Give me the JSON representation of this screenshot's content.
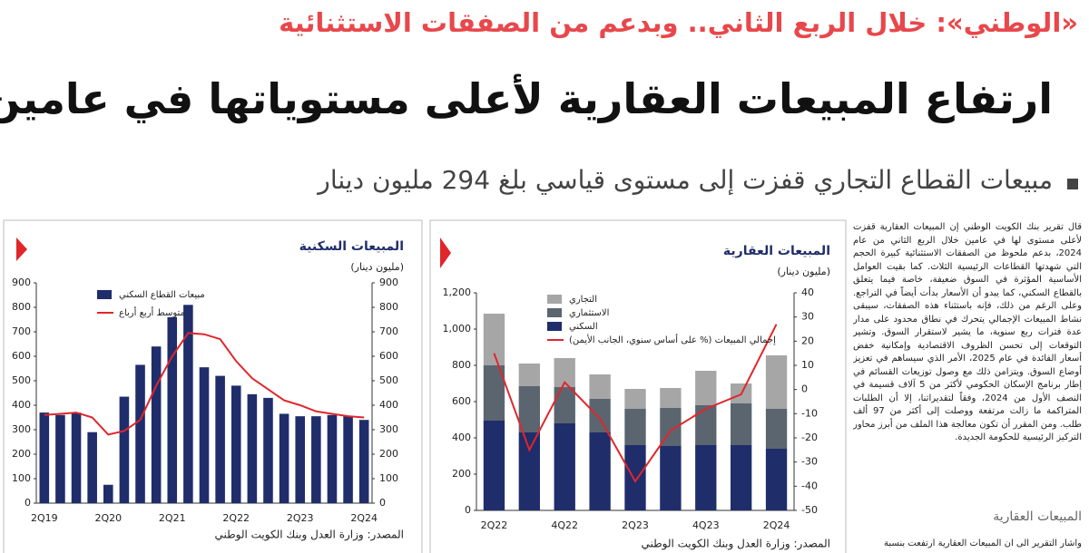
{
  "header": {
    "kicker": "«الوطني»: خلال الربع الثاني.. وبدعم من الصفقات الاستثنائية",
    "headline": "ارتفاع المبيعات العقارية لأعلى مستوياتها في عامين",
    "subheadline": "مبيعات القطاع التجاري قفزت إلى مستوى قياسي بلغ 294 مليون دينار"
  },
  "chart_data": [
    {
      "type": "combo",
      "title": "المبيعات السكنية",
      "unit": "(مليون دينار)",
      "source": "المصدر: وزارة العدل وبنك الكويت الوطني",
      "categories": [
        "2Q19",
        null,
        null,
        null,
        "2Q20",
        null,
        null,
        null,
        "2Q21",
        null,
        null,
        null,
        "2Q22",
        null,
        null,
        null,
        "2Q23",
        null,
        null,
        null,
        "2Q24"
      ],
      "series": [
        {
          "name": "مبيعات القطاع السكني",
          "kind": "bar",
          "color": "#1f2d6b",
          "values": [
            370,
            360,
            370,
            290,
            75,
            435,
            565,
            640,
            760,
            810,
            555,
            520,
            480,
            445,
            430,
            365,
            355,
            355,
            360,
            355,
            340
          ]
        },
        {
          "name": "متوسط أربع أرباع",
          "kind": "line",
          "color": "#e0262b",
          "values": [
            360,
            365,
            370,
            350,
            280,
            295,
            340,
            480,
            600,
            695,
            690,
            670,
            580,
            510,
            465,
            420,
            400,
            375,
            365,
            355,
            350
          ]
        }
      ],
      "ylim": [
        0,
        900
      ],
      "yticks": [
        0,
        100,
        200,
        300,
        400,
        500,
        600,
        700,
        800,
        900
      ],
      "y2lim": [
        0,
        900
      ],
      "y2ticks": [
        0,
        100,
        200,
        300,
        400,
        500,
        600,
        700,
        800,
        900
      ]
    },
    {
      "type": "combo",
      "stacked": true,
      "title": "المبيعات العقارية",
      "unit": "(مليون دينار)",
      "source": "المصدر: وزارة العدل وبنك الكويت الوطني",
      "categories": [
        "2Q22",
        null,
        "4Q22",
        null,
        "2Q23",
        null,
        "4Q23",
        null,
        "2Q24"
      ],
      "series": [
        {
          "name": "التجاري",
          "kind": "bar",
          "color": "#a6a6a6",
          "values": [
            285,
            125,
            160,
            135,
            110,
            110,
            190,
            110,
            295
          ]
        },
        {
          "name": "الاستثماري",
          "kind": "bar",
          "color": "#5a6570",
          "values": [
            305,
            255,
            200,
            185,
            200,
            210,
            220,
            230,
            220
          ]
        },
        {
          "name": "السكني",
          "kind": "bar",
          "color": "#1f2d6b",
          "values": [
            495,
            430,
            480,
            430,
            360,
            355,
            360,
            360,
            340
          ]
        },
        {
          "name": "إجمالي المبيعات (% على أساس سنوي، الجانب الأيمن)",
          "kind": "line",
          "axis": "y2",
          "color": "#e0262b",
          "values": [
            15,
            -25,
            3,
            -12,
            -38,
            -17,
            -8,
            -2,
            27
          ]
        }
      ],
      "ylim": [
        0,
        1200
      ],
      "yticks": [
        0,
        200,
        400,
        600,
        800,
        {
          "value": 1000,
          "label": "1,000"
        },
        {
          "value": 1200,
          "label": "1,200"
        }
      ],
      "y2lim": [
        -50,
        40
      ],
      "y2ticks": [
        -50,
        -40,
        -30,
        -20,
        -10,
        0,
        10,
        20,
        30,
        40
      ]
    }
  ],
  "article": {
    "body": "قال تقرير بنك الكويت الوطني إن المبيعات العقارية قفزت لأعلى مستوى لها في عامين خلال الربع الثاني من عام 2024، بدعم ملحوظ من الصفقات الاستثنائية كبيرة الحجم التي شهدتها القطاعات الرئيسية الثلاث. كما بقيت العوامل الأساسية المؤثرة في السوق ضعيفة، خاصة فيما يتعلق بالقطاع السكني، كما يبدو أن الأسعار بدأت أيضاً في التراجع. وعلى الرغم من ذلك، فإنه باستثناء هذه الصفقات، سيبقى نشاط المبيعات الإجمالي يتحرك في نطاق محدود على مدار عدة فترات ربع سنوية، ما يشير لاستقرار السوق. وتشير التوقعات إلى تحسن الظروف الاقتصادية وإمكانية خفض أسعار الفائدة في عام 2025، الأمر الذي سيساهم في تعزيز أوضاع السوق. ويتزامن ذلك مع وصول توزيعات القسائم في إطار برنامج الإسكان الحكومي لأكثر من 5 آلاف قسيمة في النصف الأول من 2024، وفقاً لتقديراتنا، إلا أن الطلبات المتراكمة ما زالت مرتفعة ووصلت إلى أكثر من 97 ألف طلب. ومن المقرر أن تكون معالجة هذا الملف من أبرز محاور التركيز الرئيسية للحكومة الجديدة.",
    "section_heading": "المبيعات العقارية",
    "continuation": "واشار التقرير الى ان المبيعات العقارية ارتفعت بنسبة"
  }
}
